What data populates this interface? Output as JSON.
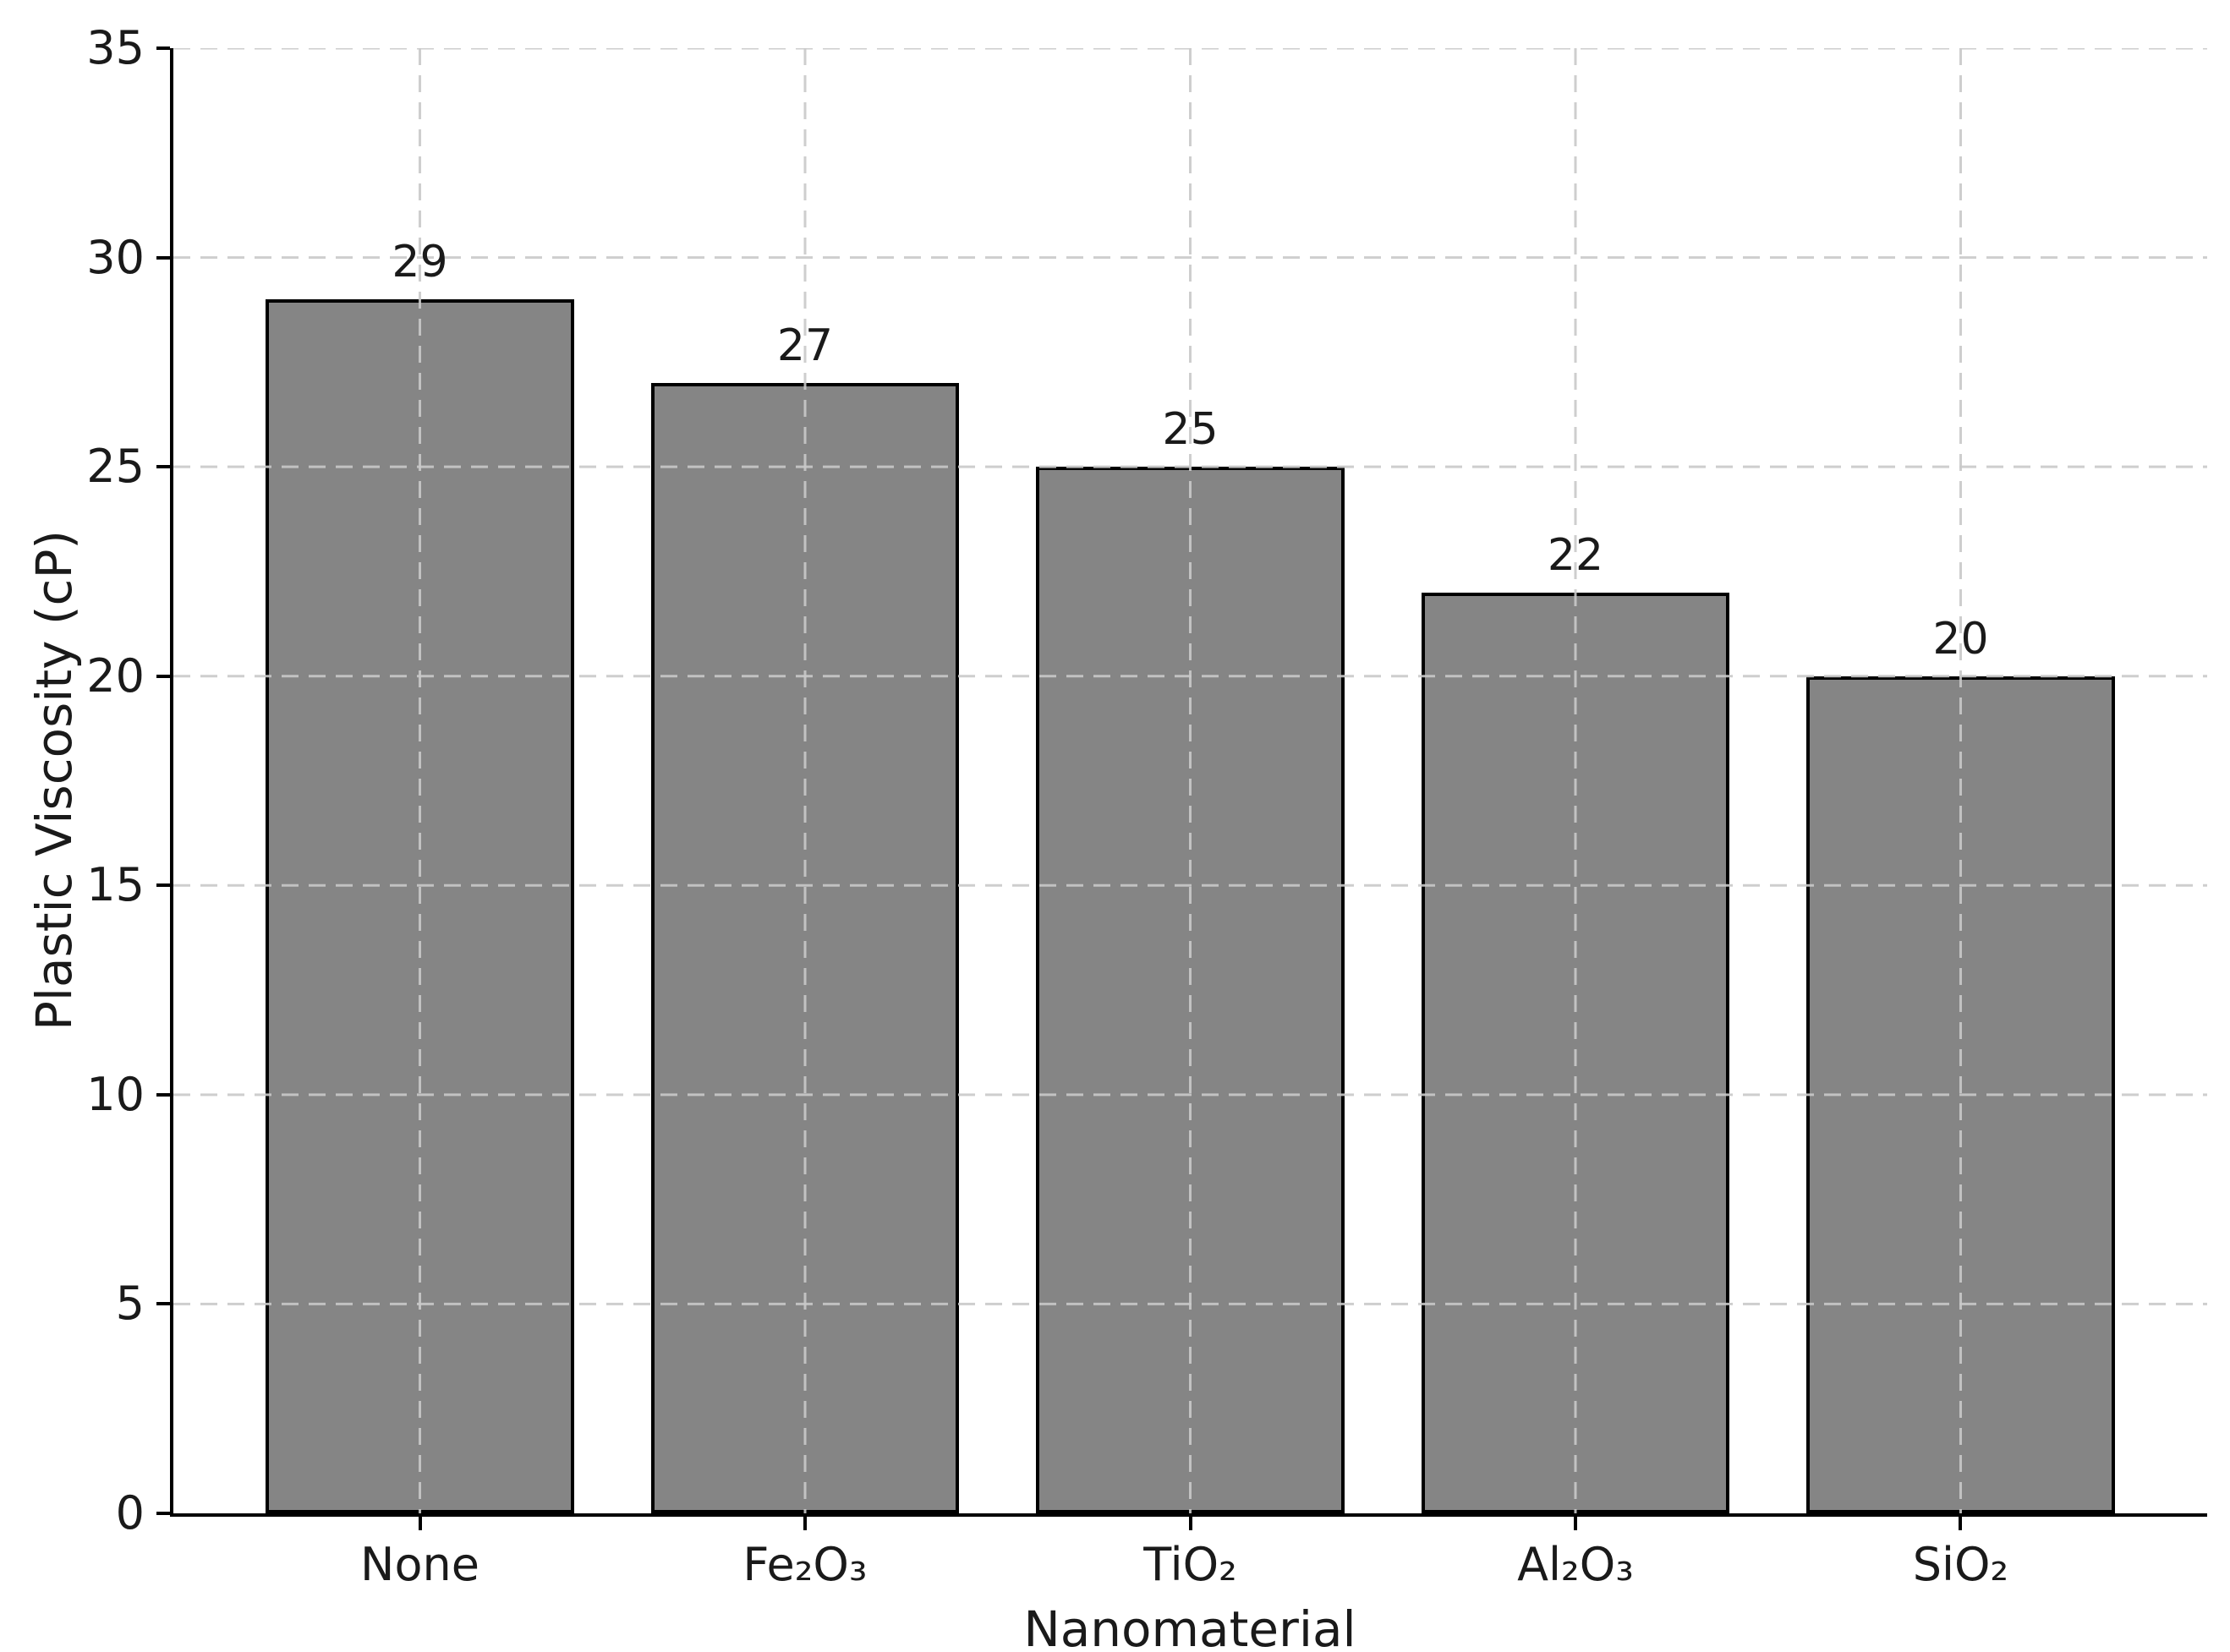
{
  "figure": {
    "background_color": "#ffffff"
  },
  "chart_data": {
    "type": "bar",
    "title": "",
    "xlabel": "Nanomaterial",
    "ylabel": "Plastic Viscosity (cP)",
    "categories": [
      "None",
      "Fe₂O₃",
      "TiO₂",
      "Al₂O₃",
      "SiO₂"
    ],
    "values": [
      29,
      27,
      25,
      22,
      20
    ],
    "bar_value_labels": [
      "29",
      "27",
      "25",
      "22",
      "20"
    ],
    "ylim": [
      0,
      35
    ],
    "yticks": [
      0,
      5,
      10,
      15,
      20,
      25,
      30,
      35
    ],
    "ytick_labels": [
      "0",
      "5",
      "10",
      "15",
      "20",
      "25",
      "30",
      "35"
    ],
    "legend": "none",
    "grid": "dashed horizontal lines at y ticks and dashed vertical lines at bar centers, drawn above bars",
    "bar_color": "#858585",
    "bar_edge_color": "#000000",
    "grid_color": "#c9c9c9",
    "text_color": "#1a1a1a",
    "spine_color": "#000000"
  }
}
